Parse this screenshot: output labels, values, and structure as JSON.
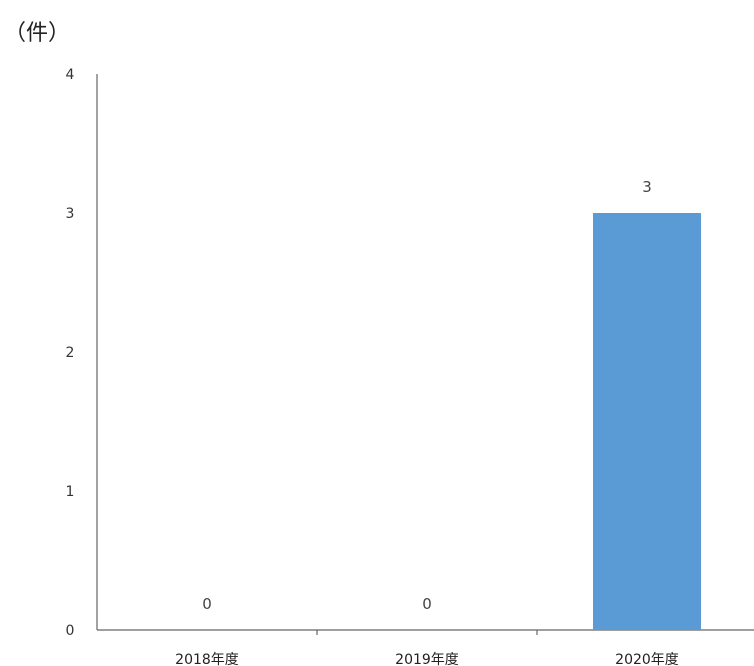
{
  "chart_data": {
    "type": "bar",
    "unit_label": "（件）",
    "categories": [
      "2018年度",
      "2019年度",
      "2020年度"
    ],
    "values": [
      0,
      0,
      3
    ],
    "data_labels": [
      "0",
      "0",
      "3"
    ],
    "ylim": [
      0,
      4
    ],
    "y_ticks": [
      0,
      1,
      2,
      3,
      4
    ],
    "bar_color": "#5b9bd5",
    "axis_color": "#666666",
    "grid": false,
    "legend": false
  }
}
